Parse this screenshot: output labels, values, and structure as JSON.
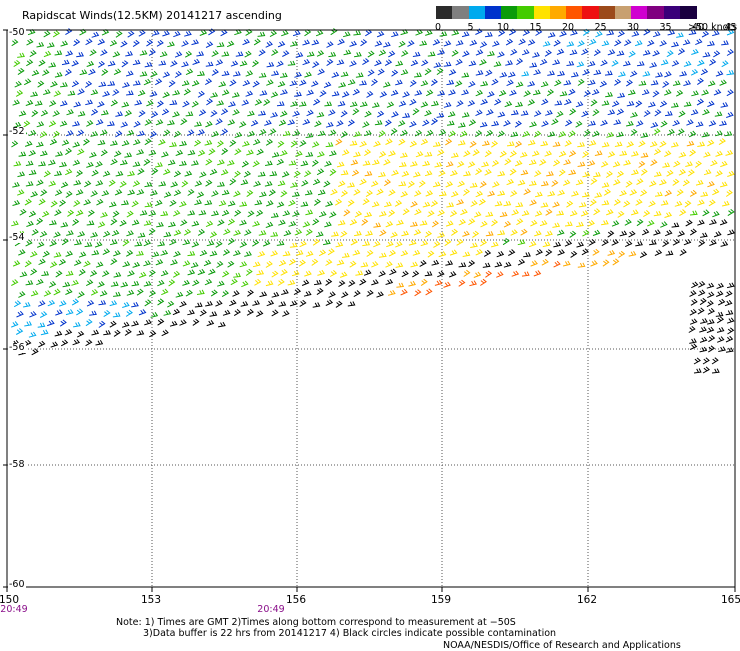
{
  "title": "Rapidscat Winds(12.5KM) 20141217 ascending",
  "legend": {
    "colors": [
      "#2b2b2b",
      "#7f7f7f",
      "#00aaee",
      "#0033cc",
      "#0a9b0a",
      "#44cc00",
      "#ffe200",
      "#ffaa00",
      "#ff5500",
      "#ee1111",
      "#9c4a1a",
      "#c8a070",
      "#d000d0",
      "#800080",
      "#3a007a",
      "#1a0040"
    ],
    "labels": [
      "0",
      "5",
      "10",
      "15",
      "20",
      "25",
      "30",
      "35",
      "40",
      "45"
    ],
    "units": ">50 knots"
  },
  "lat_labels": [
    "-50",
    "-52",
    "-54",
    "-56",
    "-58",
    "-60"
  ],
  "lon_labels": [
    "150",
    "153",
    "156",
    "159",
    "162",
    "165"
  ],
  "time_labels": [
    "20:49",
    "20:49"
  ],
  "notes": [
    "Note: 1) Times are GMT 2)Times along bottom correspond to measurement at −50S",
    "3)Data buffer is 22 hrs from 20141217 4) Black circles indicate possible contamination"
  ],
  "credit": "NOAA/NESDIS/Office of Research and Applications"
}
